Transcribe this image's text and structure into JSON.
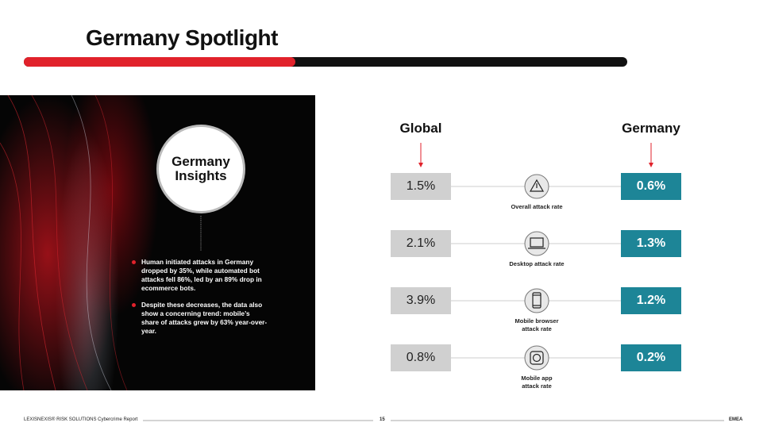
{
  "header": {
    "title": "Germany Spotlight"
  },
  "insights": {
    "heading_line1": "Germany",
    "heading_line2": "Insights",
    "bullets": [
      "Human initiated attacks in Germany dropped by 35%, while automated bot attacks fell 86%, led by an 89% drop in ecommerce bots.",
      "Despite these decreases, the data also show a concerning trend: mobile’s share of attacks grew by 63% year-over-year."
    ]
  },
  "comparison": {
    "left_heading": "Global",
    "right_heading": "Germany",
    "rows": [
      {
        "global": "1.5%",
        "label": "Overall attack rate",
        "germany": "0.6%"
      },
      {
        "global": "2.1%",
        "label": "Desktop attack rate",
        "germany": "1.3%"
      },
      {
        "global": "3.9%",
        "label": "Mobile browser attack rate",
        "germany": "1.2%"
      },
      {
        "global": "0.8%",
        "label": "Mobile app attack rate",
        "germany": "0.2%"
      }
    ]
  },
  "footer": {
    "source": "LEXISNEXIS® RISK SOLUTIONS Cybercrime Report",
    "page": "15",
    "region": "EMEA"
  }
}
